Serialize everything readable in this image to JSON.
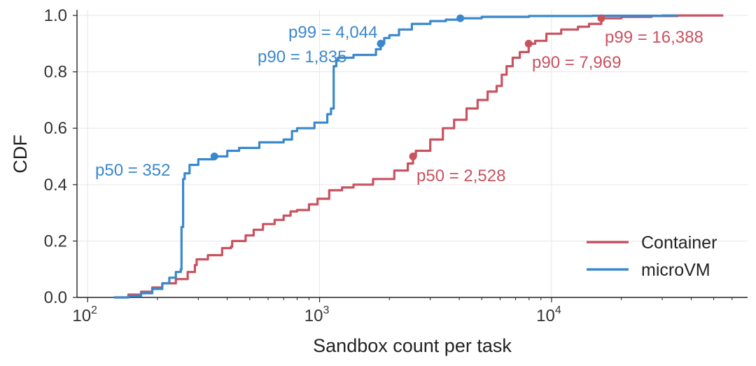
{
  "chart_data": {
    "type": "line",
    "xlabel": "Sandbox count per task",
    "ylabel": "CDF",
    "xscale": "log",
    "xlim": [
      90,
      70000
    ],
    "ylim": [
      0.0,
      1.02
    ],
    "x_ticks": [
      {
        "value": 100,
        "base": "10",
        "exp": "2"
      },
      {
        "value": 1000,
        "base": "10",
        "exp": "3"
      },
      {
        "value": 10000,
        "base": "10",
        "exp": "4"
      }
    ],
    "y_ticks": [
      {
        "value": 0.0,
        "label": "0.0"
      },
      {
        "value": 0.2,
        "label": "0.2"
      },
      {
        "value": 0.4,
        "label": "0.4"
      },
      {
        "value": 0.6,
        "label": "0.6"
      },
      {
        "value": 0.8,
        "label": "0.8"
      },
      {
        "value": 1.0,
        "label": "1.0"
      }
    ],
    "grid": true,
    "legend_position": "lower-right",
    "series": [
      {
        "name": "Container",
        "color": "#c9525f",
        "x": [
          130,
          150,
          170,
          190,
          210,
          240,
          270,
          290,
          295,
          330,
          380,
          415,
          420,
          480,
          520,
          570,
          640,
          700,
          750,
          800,
          900,
          980,
          1100,
          1250,
          1400,
          1700,
          2100,
          2400,
          2528,
          2600,
          3000,
          3400,
          3800,
          4300,
          4800,
          5300,
          5800,
          6100,
          6400,
          6800,
          7300,
          7969,
          8500,
          9500,
          11000,
          13000,
          14500,
          16388,
          20000,
          27000,
          35000,
          55000
        ],
        "y": [
          0.0,
          0.01,
          0.02,
          0.035,
          0.05,
          0.065,
          0.09,
          0.115,
          0.135,
          0.15,
          0.175,
          0.18,
          0.2,
          0.22,
          0.24,
          0.26,
          0.275,
          0.29,
          0.305,
          0.31,
          0.33,
          0.35,
          0.38,
          0.39,
          0.4,
          0.42,
          0.45,
          0.475,
          0.5,
          0.52,
          0.56,
          0.6,
          0.63,
          0.67,
          0.7,
          0.73,
          0.75,
          0.79,
          0.82,
          0.85,
          0.87,
          0.9,
          0.91,
          0.935,
          0.95,
          0.96,
          0.97,
          0.99,
          0.995,
          0.998,
          1.0,
          1.0
        ]
      },
      {
        "name": "microVM",
        "color": "#3a88cc",
        "x": [
          130,
          150,
          170,
          190,
          210,
          225,
          240,
          252,
          254,
          258,
          262,
          275,
          300,
          352,
          400,
          450,
          550,
          700,
          760,
          800,
          950,
          1080,
          1120,
          1150,
          1180,
          1200,
          1400,
          1600,
          1750,
          1835,
          1900,
          2000,
          2200,
          2500,
          3000,
          3500,
          4044,
          5000,
          8000,
          15000,
          30000,
          35000
        ],
        "y": [
          0.0,
          0.005,
          0.015,
          0.03,
          0.05,
          0.07,
          0.09,
          0.1,
          0.25,
          0.42,
          0.44,
          0.47,
          0.49,
          0.5,
          0.52,
          0.53,
          0.55,
          0.56,
          0.59,
          0.6,
          0.62,
          0.65,
          0.67,
          0.82,
          0.84,
          0.85,
          0.86,
          0.86,
          0.88,
          0.9,
          0.92,
          0.93,
          0.95,
          0.97,
          0.98,
          0.985,
          0.99,
          0.995,
          0.998,
          0.999,
          1.0,
          1.0
        ]
      }
    ],
    "markers": [
      {
        "series": "microVM",
        "x": 352,
        "y": 0.5
      },
      {
        "series": "microVM",
        "x": 1835,
        "y": 0.9
      },
      {
        "series": "microVM",
        "x": 4044,
        "y": 0.99
      },
      {
        "series": "Container",
        "x": 2528,
        "y": 0.5
      },
      {
        "series": "Container",
        "x": 7969,
        "y": 0.9
      },
      {
        "series": "Container",
        "x": 16388,
        "y": 0.99
      }
    ],
    "annotations": [
      {
        "text": "p50 = 352",
        "series": "microVM"
      },
      {
        "text": "p90 = 1,835",
        "series": "microVM"
      },
      {
        "text": "p99 = 4,044",
        "series": "microVM"
      },
      {
        "text": "p50 = 2,528",
        "series": "Container"
      },
      {
        "text": "p90 = 7,969",
        "series": "Container"
      },
      {
        "text": "p99 = 16,388",
        "series": "Container"
      }
    ]
  }
}
